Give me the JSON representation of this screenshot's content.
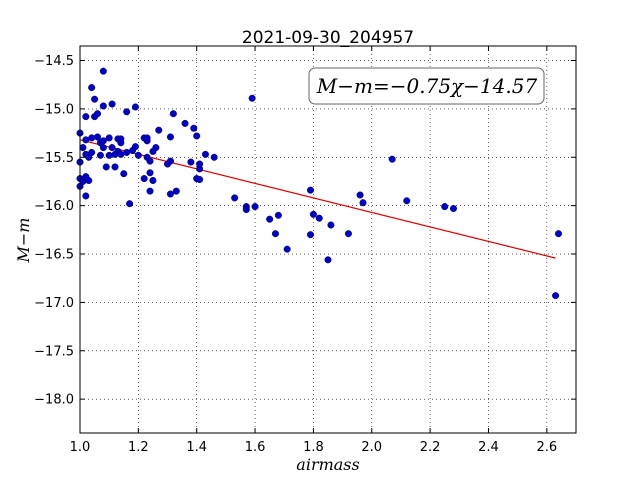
{
  "chart_data": {
    "type": "scatter",
    "title": "2021-09-30_204957",
    "xlabel": "airmass",
    "ylabel": "M−m",
    "annotation": "M−m=−0.75χ−14.57",
    "xlim": [
      1.0,
      2.7
    ],
    "ylim": [
      -18.35,
      -14.35
    ],
    "y_inverted": true,
    "grid": true,
    "x_ticks": [
      1.0,
      1.2,
      1.4,
      1.6,
      1.8,
      2.0,
      2.2,
      2.4,
      2.6
    ],
    "x_tick_labels": [
      "1.0",
      "1.2",
      "1.4",
      "1.6",
      "1.8",
      "2.0",
      "2.2",
      "2.4",
      "2.6"
    ],
    "y_ticks": [
      -14.5,
      -15.0,
      -15.5,
      -16.0,
      -16.5,
      -17.0,
      -17.5,
      -18.0
    ],
    "y_tick_labels": [
      "−14.5",
      "−15.0",
      "−15.5",
      "−16.0",
      "−16.5",
      "−17.0",
      "−17.5",
      "−18.0"
    ],
    "marker_color": "#0000cc",
    "fit_color": "#dd0000",
    "fit_line": {
      "slope": -0.75,
      "intercept": -14.57,
      "x_range": [
        1.0,
        2.63
      ]
    },
    "points": [
      [
        1.0,
        -15.25
      ],
      [
        1.0,
        -15.55
      ],
      [
        1.0,
        -15.72
      ],
      [
        1.0,
        -15.8
      ],
      [
        1.01,
        -15.4
      ],
      [
        1.01,
        -15.75
      ],
      [
        1.02,
        -15.32
      ],
      [
        1.02,
        -15.08
      ],
      [
        1.02,
        -15.47
      ],
      [
        1.02,
        -15.7
      ],
      [
        1.02,
        -15.9
      ],
      [
        1.03,
        -15.5
      ],
      [
        1.03,
        -15.74
      ],
      [
        1.04,
        -14.78
      ],
      [
        1.04,
        -15.45
      ],
      [
        1.04,
        -15.3
      ],
      [
        1.05,
        -14.9
      ],
      [
        1.05,
        -15.08
      ],
      [
        1.06,
        -15.05
      ],
      [
        1.06,
        -15.29
      ],
      [
        1.07,
        -15.48
      ],
      [
        1.07,
        -15.35
      ],
      [
        1.08,
        -14.97
      ],
      [
        1.08,
        -15.33
      ],
      [
        1.08,
        -15.4
      ],
      [
        1.08,
        -14.61
      ],
      [
        1.09,
        -15.6
      ],
      [
        1.1,
        -15.48
      ],
      [
        1.1,
        -15.3
      ],
      [
        1.11,
        -14.95
      ],
      [
        1.11,
        -15.4
      ],
      [
        1.12,
        -15.47
      ],
      [
        1.12,
        -15.6
      ],
      [
        1.13,
        -15.44
      ],
      [
        1.13,
        -15.31
      ],
      [
        1.14,
        -15.31
      ],
      [
        1.14,
        -15.35
      ],
      [
        1.14,
        -15.47
      ],
      [
        1.15,
        -15.67
      ],
      [
        1.16,
        -15.03
      ],
      [
        1.16,
        -15.45
      ],
      [
        1.17,
        -15.98
      ],
      [
        1.18,
        -15.43
      ],
      [
        1.19,
        -14.98
      ],
      [
        1.19,
        -15.39
      ],
      [
        1.2,
        -15.48
      ],
      [
        1.22,
        -15.72
      ],
      [
        1.22,
        -15.3
      ],
      [
        1.23,
        -15.33
      ],
      [
        1.23,
        -15.3
      ],
      [
        1.23,
        -15.5
      ],
      [
        1.24,
        -15.54
      ],
      [
        1.24,
        -15.66
      ],
      [
        1.24,
        -15.85
      ],
      [
        1.25,
        -15.44
      ],
      [
        1.25,
        -15.74
      ],
      [
        1.26,
        -15.4
      ],
      [
        1.27,
        -15.22
      ],
      [
        1.3,
        -15.57
      ],
      [
        1.31,
        -15.54
      ],
      [
        1.31,
        -15.88
      ],
      [
        1.31,
        -15.29
      ],
      [
        1.32,
        -15.05
      ],
      [
        1.33,
        -15.85
      ],
      [
        1.36,
        -15.15
      ],
      [
        1.38,
        -15.55
      ],
      [
        1.39,
        -15.2
      ],
      [
        1.4,
        -15.28
      ],
      [
        1.4,
        -15.72
      ],
      [
        1.41,
        -15.62
      ],
      [
        1.41,
        -15.73
      ],
      [
        1.41,
        -15.57
      ],
      [
        1.43,
        -15.47
      ],
      [
        1.46,
        -15.5
      ],
      [
        1.53,
        -15.92
      ],
      [
        1.57,
        -16.01
      ],
      [
        1.57,
        -16.04
      ],
      [
        1.59,
        -14.89
      ],
      [
        1.6,
        -16.01
      ],
      [
        1.65,
        -16.14
      ],
      [
        1.67,
        -16.29
      ],
      [
        1.68,
        -16.1
      ],
      [
        1.71,
        -16.45
      ],
      [
        1.79,
        -16.3
      ],
      [
        1.79,
        -15.84
      ],
      [
        1.8,
        -16.09
      ],
      [
        1.82,
        -16.13
      ],
      [
        1.85,
        -16.56
      ],
      [
        1.86,
        -16.2
      ],
      [
        1.92,
        -16.29
      ],
      [
        1.96,
        -15.89
      ],
      [
        1.97,
        -15.97
      ],
      [
        2.07,
        -15.52
      ],
      [
        2.12,
        -15.95
      ],
      [
        2.25,
        -16.01
      ],
      [
        2.28,
        -16.03
      ],
      [
        2.63,
        -16.93
      ],
      [
        2.64,
        -16.29
      ]
    ]
  }
}
